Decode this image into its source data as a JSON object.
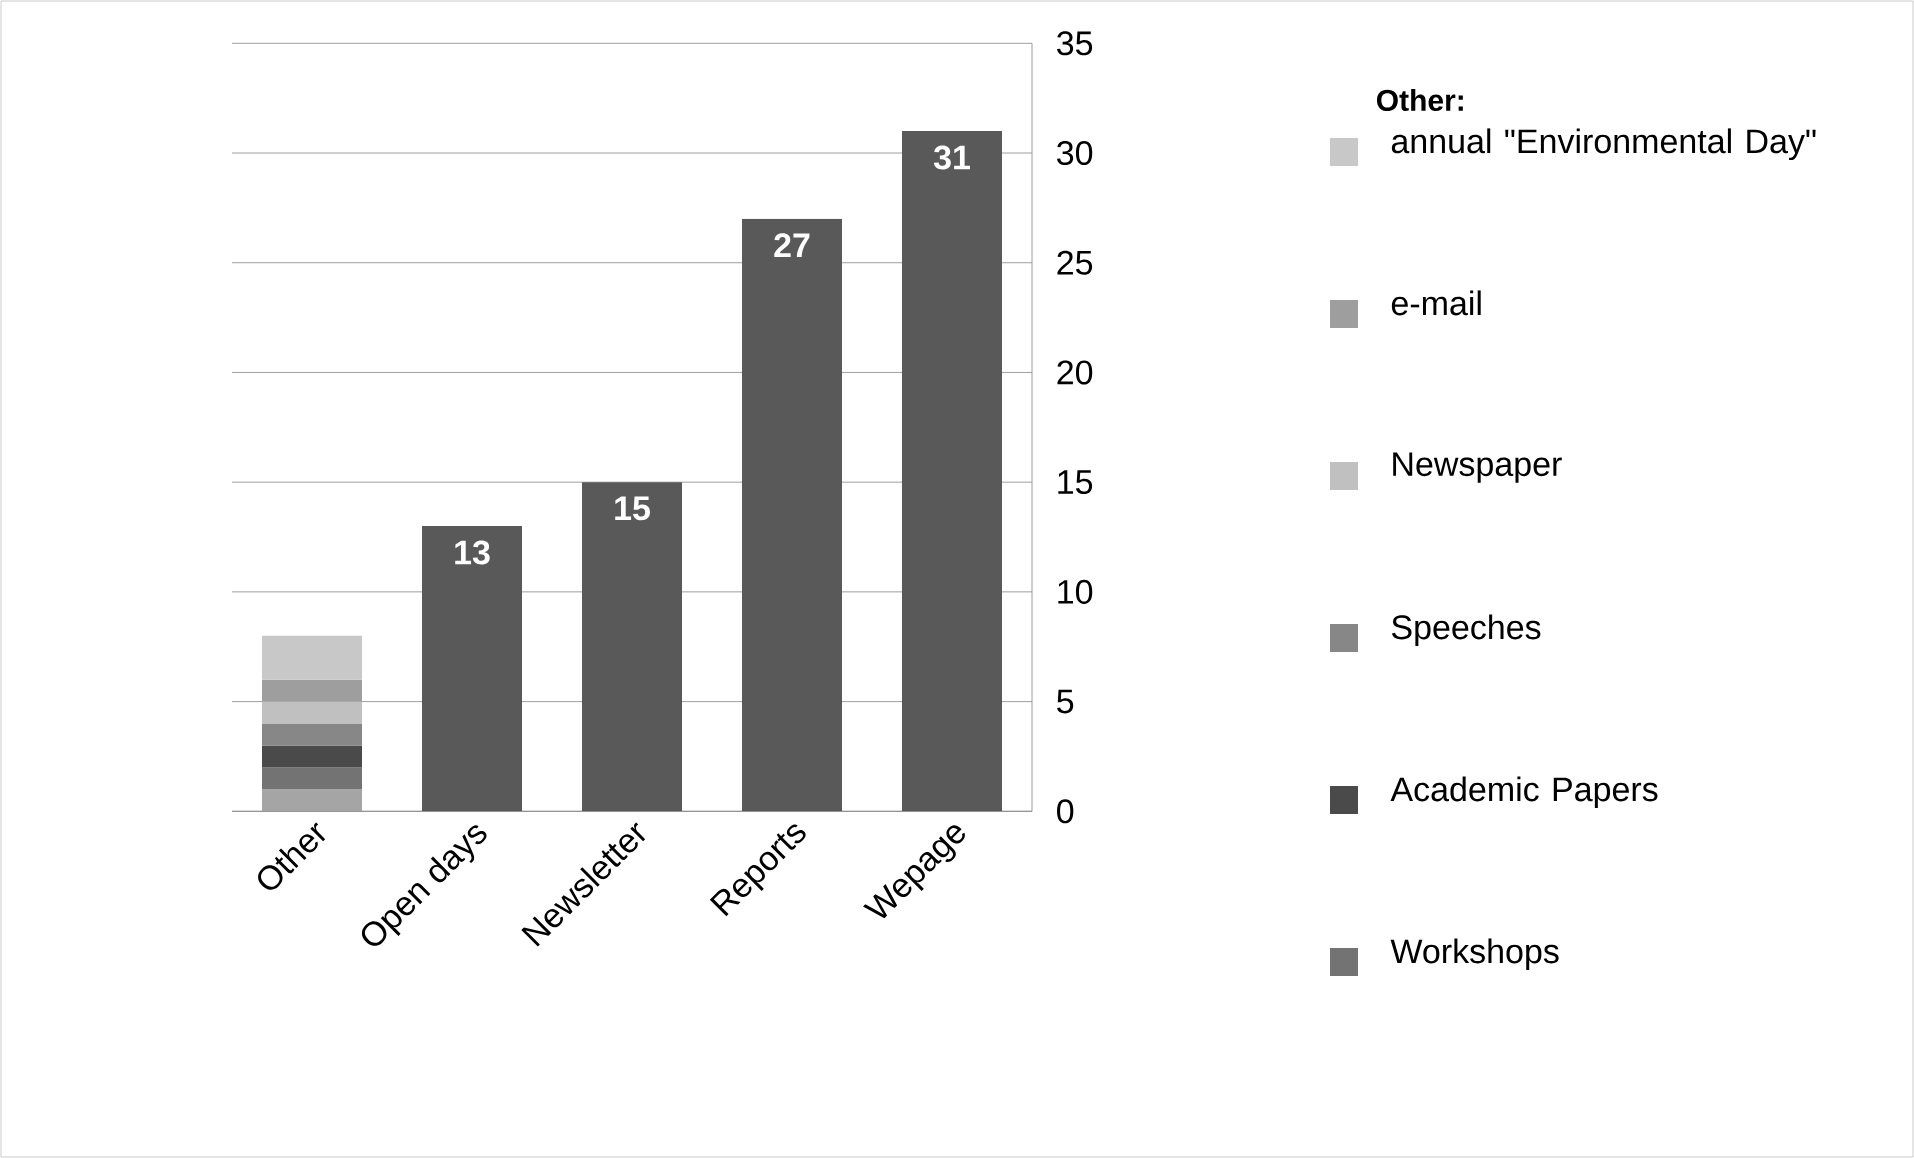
{
  "chart_data": {
    "type": "bar",
    "stacked": true,
    "categories": [
      "Other",
      "Open days",
      "Newsletter",
      "Reports",
      "Wepage"
    ],
    "series": [
      {
        "color": "#a5a5a5",
        "values": [
          1,
          null,
          null,
          null,
          null
        ]
      },
      {
        "name": "Workshops",
        "color": "#737373",
        "values": [
          1,
          null,
          null,
          null,
          null
        ]
      },
      {
        "name": "Academic Papers",
        "color": "#4a4a4a",
        "values": [
          1,
          null,
          null,
          null,
          null
        ]
      },
      {
        "name": "Speeches",
        "color": "#878787",
        "values": [
          1,
          null,
          null,
          null,
          null
        ]
      },
      {
        "name": "Newspaper",
        "color": "#c0c0c0",
        "values": [
          1,
          null,
          null,
          null,
          null
        ]
      },
      {
        "name": "e-mail",
        "color": "#9e9e9e",
        "values": [
          1,
          null,
          null,
          null,
          null
        ]
      },
      {
        "name": "annual \"Environmental Day\"",
        "color": "#c8c8c8",
        "values": [
          2,
          null,
          null,
          null,
          null
        ]
      },
      {
        "color": "#595959",
        "values": [
          null,
          13,
          15,
          27,
          31
        ],
        "value_labels": [
          null,
          "13",
          "15",
          "27",
          "31"
        ]
      }
    ],
    "ylim": [
      0,
      35
    ],
    "yticks": [
      0,
      5,
      10,
      15,
      20,
      25,
      30,
      35
    ],
    "grid": "y",
    "legend": "right",
    "legend_title": "Other:"
  }
}
